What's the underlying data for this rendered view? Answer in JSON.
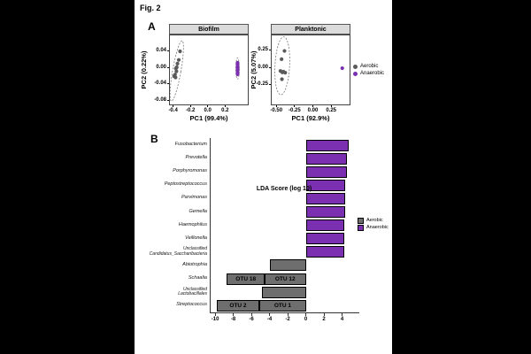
{
  "figure": {
    "label": "Fig. 2"
  },
  "panel_a": {
    "label": "A"
  },
  "panel_b": {
    "label": "B"
  },
  "colors": {
    "aerobic_point": "#5A5A5A",
    "anaerobic_point": "#7A30B0",
    "aerobic_bar": "#6E6E6E",
    "anaerobic_bar": "#7A30B0",
    "ellipse_stroke": "#777777",
    "strip_bg": "#DBDBDB"
  },
  "legend_a": {
    "items": [
      {
        "label": "Aerobic",
        "color": "#5A5A5A"
      },
      {
        "label": "Anaerobic",
        "color": "#7A30B0"
      }
    ]
  },
  "legend_b": {
    "items": [
      {
        "label": "Aerobic",
        "color": "#6E6E6E"
      },
      {
        "label": "Anaerobic",
        "color": "#7A30B0"
      }
    ]
  },
  "chart_data": [
    {
      "type": "scatter",
      "title": "Biofilm",
      "xlabel": "PC1 (99.4%)",
      "ylabel": "PC2 (0.22%)",
      "xlim": [
        -0.447,
        0.453
      ],
      "ylim": [
        -0.088,
        0.081
      ],
      "xticks": [
        -0.4,
        -0.2,
        0.0,
        0.2
      ],
      "xtick_labels": [
        "-0.4",
        "-0.2",
        "0.0",
        "0.2"
      ],
      "yticks": [
        0.04,
        0.0,
        -0.04,
        -0.08
      ],
      "ytick_labels": [
        "0.04",
        "0.00",
        "-0.04",
        "-0.08"
      ],
      "grid": false,
      "series": [
        {
          "name": "Aerobic",
          "points": [
            [
              -0.33,
              0.042
            ],
            [
              -0.345,
              0.021
            ],
            [
              -0.36,
              0.012
            ],
            [
              -0.368,
              0.003
            ],
            [
              -0.378,
              0.0
            ],
            [
              -0.372,
              -0.007
            ],
            [
              -0.388,
              -0.015
            ],
            [
              -0.398,
              -0.019
            ],
            [
              -0.382,
              -0.022
            ]
          ]
        },
        {
          "name": "Anaerobic",
          "points": [
            [
              0.335,
              0.014
            ],
            [
              0.335,
              0.009
            ],
            [
              0.335,
              0.004
            ],
            [
              0.335,
              0.0
            ],
            [
              0.335,
              -0.005
            ],
            [
              0.335,
              -0.01
            ],
            [
              0.335,
              -0.014
            ]
          ]
        }
      ],
      "ellipses": [
        {
          "cx": -0.368,
          "cy": -0.006,
          "rx": 0.048,
          "ry": 0.075,
          "rot": 10
        },
        {
          "cx": 0.335,
          "cy": 0.0,
          "rx": 0.02,
          "ry": 0.026,
          "rot": 0
        }
      ]
    },
    {
      "type": "scatter",
      "title": "Planktonic",
      "xlabel": "PC1 (92.9%)",
      "ylabel": "PC2 (5.07%)",
      "xlim": [
        -0.575,
        0.49
      ],
      "ylim": [
        -0.525,
        0.475
      ],
      "xticks": [
        -0.5,
        -0.25,
        0.0,
        0.25
      ],
      "xtick_labels": [
        "-0.50",
        "-0.25",
        "0.00",
        "0.25"
      ],
      "yticks": [
        0.25,
        0.0,
        -0.25
      ],
      "ytick_labels": [
        "0.25",
        "0.00",
        "-0.25"
      ],
      "grid": false,
      "series": [
        {
          "name": "Aerobic",
          "points": [
            [
              -0.4,
              0.25
            ],
            [
              -0.44,
              0.13
            ],
            [
              -0.455,
              -0.04
            ],
            [
              -0.43,
              -0.06
            ],
            [
              -0.415,
              -0.05
            ],
            [
              -0.39,
              -0.065
            ],
            [
              -0.435,
              -0.16
            ]
          ]
        },
        {
          "name": "Anaerobic",
          "points": [
            [
              0.39,
              0.0
            ]
          ]
        }
      ],
      "ellipses": [
        {
          "cx": -0.43,
          "cy": 0.035,
          "rx": 0.1,
          "ry": 0.42,
          "rot": 3
        }
      ]
    },
    {
      "type": "bar",
      "orientation": "horizontal",
      "xlabel": "LDA Score (log 10)",
      "xlim": [
        -10.5,
        5.9
      ],
      "xticks": [
        -10,
        -8,
        -6,
        -4,
        -2,
        0,
        2,
        4
      ],
      "xtick_labels": [
        "-10",
        "-8",
        "-6",
        "-4",
        "-2",
        "0",
        "2",
        "4"
      ],
      "rows": [
        {
          "label_lines": [
            "Fusobacterium"
          ],
          "segments": [
            {
              "from": 0,
              "to": 4.75,
              "group": "Anaerobic",
              "text": ""
            }
          ]
        },
        {
          "label_lines": [
            "Prevotella"
          ],
          "segments": [
            {
              "from": 0,
              "to": 4.5,
              "group": "Anaerobic",
              "text": ""
            }
          ]
        },
        {
          "label_lines": [
            "Porphyromonas"
          ],
          "segments": [
            {
              "from": 0,
              "to": 4.5,
              "group": "Anaerobic",
              "text": ""
            }
          ]
        },
        {
          "label_lines": [
            "Peptostreptococcus"
          ],
          "segments": [
            {
              "from": 0,
              "to": 4.35,
              "group": "Anaerobic",
              "text": ""
            }
          ]
        },
        {
          "label_lines": [
            "Parvimonas"
          ],
          "segments": [
            {
              "from": 0,
              "to": 4.3,
              "group": "Anaerobic",
              "text": ""
            }
          ]
        },
        {
          "label_lines": [
            "Gemella"
          ],
          "segments": [
            {
              "from": 0,
              "to": 4.3,
              "group": "Anaerobic",
              "text": ""
            }
          ]
        },
        {
          "label_lines": [
            "Haemophilus"
          ],
          "segments": [
            {
              "from": 0,
              "to": 4.25,
              "group": "Anaerobic",
              "text": ""
            }
          ]
        },
        {
          "label_lines": [
            "Veillonella"
          ],
          "segments": [
            {
              "from": 0,
              "to": 4.2,
              "group": "Anaerobic",
              "text": ""
            }
          ]
        },
        {
          "label_lines": [
            "Unclassified",
            "Candidatus_Saccharibacteria"
          ],
          "segments": [
            {
              "from": 0,
              "to": 4.2,
              "group": "Anaerobic",
              "text": ""
            }
          ]
        },
        {
          "label_lines": [
            "Abiotrophia"
          ],
          "segments": [
            {
              "from": -4.0,
              "to": 0,
              "group": "Aerobic",
              "text": ""
            }
          ]
        },
        {
          "label_lines": [
            "Schaalia"
          ],
          "segments": [
            {
              "from": -8.7,
              "to": -4.55,
              "group": "Aerobic",
              "text": "OTU 18"
            },
            {
              "from": -4.55,
              "to": 0,
              "group": "Aerobic",
              "text": "OTU 12"
            }
          ]
        },
        {
          "label_lines": [
            "Unclassified",
            "Lactobacillales"
          ],
          "segments": [
            {
              "from": -4.85,
              "to": 0,
              "group": "Aerobic",
              "text": ""
            }
          ]
        },
        {
          "label_lines": [
            "Streptococcus"
          ],
          "segments": [
            {
              "from": -9.85,
              "to": -5.1,
              "group": "Aerobic",
              "text": "OTU 2"
            },
            {
              "from": -5.1,
              "to": 0,
              "group": "Aerobic",
              "text": "OTU 1"
            }
          ]
        }
      ]
    }
  ]
}
